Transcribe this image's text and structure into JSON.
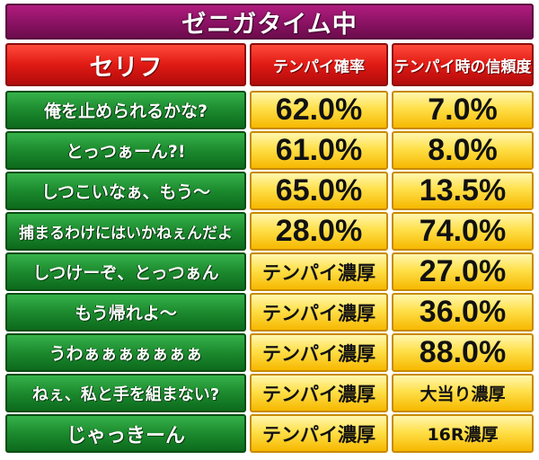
{
  "title": "ゼニガタイム中",
  "headers": {
    "line": "セリフ",
    "tenpai_rate": "テンパイ確率",
    "reliability": "テンパイ時の信頼度"
  },
  "rows": [
    {
      "line": "俺を止められるかな?",
      "tenpai_rate": "62.0%",
      "reliability": "7.0%"
    },
    {
      "line": "とっつぁーん?!",
      "tenpai_rate": "61.0%",
      "reliability": "8.0%"
    },
    {
      "line": "しつこいなぁ、もう〜",
      "tenpai_rate": "65.0%",
      "reliability": "13.5%"
    },
    {
      "line": "捕まるわけにはいかねぇんだよ",
      "tenpai_rate": "28.0%",
      "reliability": "74.0%"
    },
    {
      "line": "しつけーぞ、とっつぁん",
      "tenpai_rate": "テンパイ濃厚",
      "reliability": "27.0%"
    },
    {
      "line": "もう帰れよ〜",
      "tenpai_rate": "テンパイ濃厚",
      "reliability": "36.0%"
    },
    {
      "line": "うわぁぁぁぁぁぁぁ",
      "tenpai_rate": "テンパイ濃厚",
      "reliability": "88.0%"
    },
    {
      "line": "ねぇ、私と手を組まない?",
      "tenpai_rate": "テンパイ濃厚",
      "reliability": "大当り濃厚"
    },
    {
      "line": "じゃっきーん",
      "tenpai_rate": "テンパイ濃厚",
      "reliability": "16R濃厚"
    }
  ],
  "colors": {
    "title_bg": "#8a1263",
    "header_bg": "#e01a14",
    "line_bg": "#1c8a2e",
    "value_bg": "#ffe04a",
    "highlight_text": "#e01010"
  }
}
